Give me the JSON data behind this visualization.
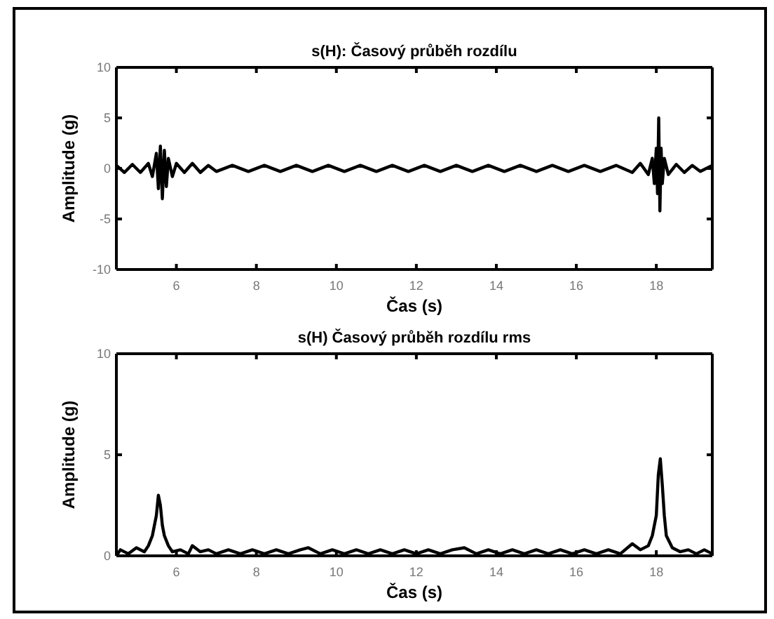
{
  "chart_data": [
    {
      "type": "line",
      "title": "s(H): Časový průběh rozdílu",
      "xlabel": "Čas (s)",
      "ylabel": "Amplitude (g)",
      "color": "#000000",
      "xlim": [
        4.5,
        19.4
      ],
      "ylim": [
        -10,
        10
      ],
      "xticks": [
        6,
        8,
        10,
        12,
        14,
        16,
        18
      ],
      "yticks": [
        -10,
        -5,
        0,
        5,
        10
      ],
      "x": [
        4.5,
        4.7,
        4.9,
        5.1,
        5.3,
        5.4,
        5.5,
        5.55,
        5.6,
        5.65,
        5.7,
        5.75,
        5.8,
        5.9,
        6.0,
        6.2,
        6.4,
        6.6,
        6.8,
        7.0,
        7.4,
        7.8,
        8.2,
        8.6,
        9.0,
        9.4,
        9.8,
        10.2,
        10.6,
        11.0,
        11.4,
        11.8,
        12.2,
        12.6,
        13.0,
        13.4,
        13.8,
        14.2,
        14.6,
        15.0,
        15.4,
        15.8,
        16.2,
        16.6,
        17.0,
        17.4,
        17.6,
        17.8,
        17.9,
        17.95,
        18.0,
        18.03,
        18.06,
        18.09,
        18.12,
        18.15,
        18.2,
        18.3,
        18.5,
        18.7,
        18.9,
        19.1,
        19.4
      ],
      "values": [
        0.3,
        -0.4,
        0.4,
        -0.4,
        0.5,
        -0.8,
        1.5,
        -2.0,
        2.2,
        -3.0,
        1.8,
        -1.8,
        1.0,
        -0.8,
        0.5,
        -0.4,
        0.5,
        -0.4,
        0.3,
        -0.3,
        0.3,
        -0.3,
        0.3,
        -0.3,
        0.3,
        -0.3,
        0.3,
        -0.3,
        0.3,
        -0.3,
        0.3,
        -0.3,
        0.3,
        -0.3,
        0.3,
        -0.3,
        0.3,
        -0.3,
        0.3,
        -0.3,
        0.3,
        -0.3,
        0.3,
        -0.3,
        0.3,
        -0.4,
        0.5,
        -0.6,
        1.0,
        -1.5,
        2.0,
        -2.5,
        5.0,
        -4.2,
        2.0,
        -1.5,
        1.0,
        -0.6,
        0.4,
        -0.4,
        0.3,
        -0.3,
        0.3
      ]
    },
    {
      "type": "line",
      "title": "s(H) Časový průběh rozdílu rms",
      "xlabel": "Čas (s)",
      "ylabel": "Amplitude (g)",
      "color": "#000000",
      "xlim": [
        4.5,
        19.4
      ],
      "ylim": [
        0,
        10
      ],
      "xticks": [
        6,
        8,
        10,
        12,
        14,
        16,
        18
      ],
      "yticks": [
        0,
        5,
        10
      ],
      "x": [
        4.5,
        4.6,
        4.8,
        5.0,
        5.2,
        5.3,
        5.4,
        5.5,
        5.55,
        5.6,
        5.65,
        5.7,
        5.8,
        5.9,
        6.1,
        6.3,
        6.4,
        6.6,
        6.8,
        7.0,
        7.3,
        7.6,
        7.9,
        8.2,
        8.5,
        8.8,
        9.1,
        9.3,
        9.6,
        9.9,
        10.2,
        10.5,
        10.8,
        11.1,
        11.4,
        11.7,
        12.0,
        12.3,
        12.6,
        12.9,
        13.2,
        13.5,
        13.8,
        14.1,
        14.4,
        14.7,
        15.0,
        15.3,
        15.6,
        15.9,
        16.2,
        16.5,
        16.8,
        17.1,
        17.4,
        17.6,
        17.8,
        17.9,
        18.0,
        18.05,
        18.1,
        18.15,
        18.2,
        18.25,
        18.4,
        18.6,
        18.8,
        19.0,
        19.2,
        19.4
      ],
      "values": [
        0,
        0.3,
        0.1,
        0.4,
        0.2,
        0.5,
        1.0,
        2.0,
        3.0,
        2.5,
        1.5,
        1.0,
        0.5,
        0.2,
        0.3,
        0.1,
        0.5,
        0.2,
        0.3,
        0.1,
        0.3,
        0.1,
        0.3,
        0.1,
        0.3,
        0.1,
        0.3,
        0.4,
        0.1,
        0.3,
        0.1,
        0.3,
        0.1,
        0.3,
        0.1,
        0.3,
        0.1,
        0.3,
        0.1,
        0.3,
        0.4,
        0.1,
        0.3,
        0.1,
        0.3,
        0.1,
        0.3,
        0.1,
        0.3,
        0.1,
        0.3,
        0.1,
        0.3,
        0.1,
        0.6,
        0.3,
        0.5,
        1.0,
        2.0,
        4.0,
        4.8,
        3.5,
        2.0,
        1.0,
        0.4,
        0.2,
        0.3,
        0.1,
        0.3,
        0.1
      ]
    }
  ]
}
